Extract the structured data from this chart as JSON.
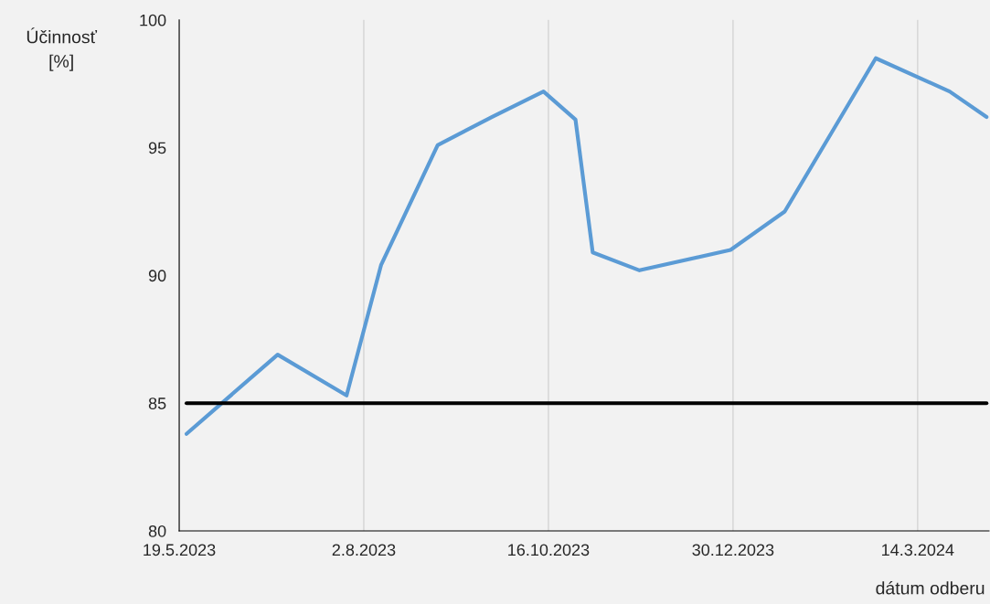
{
  "chart_data": {
    "type": "line",
    "ylabel": "Účinnosť\n[%]",
    "xlabel": "dátum odberu",
    "x": [
      "2023-05-22",
      "2023-06-28",
      "2023-07-26",
      "2023-08-09",
      "2023-09-01",
      "2023-09-23",
      "2023-10-14",
      "2023-10-27",
      "2023-11-03",
      "2023-11-22",
      "2023-12-29",
      "2024-01-20",
      "2024-02-26",
      "2024-03-27",
      "2024-04-11"
    ],
    "series": [
      {
        "color": "#5b9bd5",
        "values": [
          83.8,
          86.9,
          85.3,
          90.4,
          95.1,
          96.2,
          97.2,
          96.1,
          90.9,
          90.2,
          91.0,
          92.5,
          98.5,
          97.2,
          96.2
        ]
      },
      {
        "color": "#000000",
        "x": [
          "2023-05-22",
          "2024-04-11"
        ],
        "values": [
          85,
          85
        ]
      }
    ],
    "xlim": [
      "2023-05-19",
      "2024-04-12"
    ],
    "xticks": [
      {
        "value": "2023-05-19",
        "label": "19.5.2023"
      },
      {
        "value": "2023-08-02",
        "label": "2.8.2023"
      },
      {
        "value": "2023-10-16",
        "label": "16.10.2023"
      },
      {
        "value": "2023-12-30",
        "label": "30.12.2023"
      },
      {
        "value": "2024-03-14",
        "label": "14.3.2024"
      }
    ],
    "ylim": [
      80,
      100
    ],
    "yticks": [
      80,
      85,
      90,
      95,
      100
    ],
    "grid": "x",
    "legend": false
  }
}
